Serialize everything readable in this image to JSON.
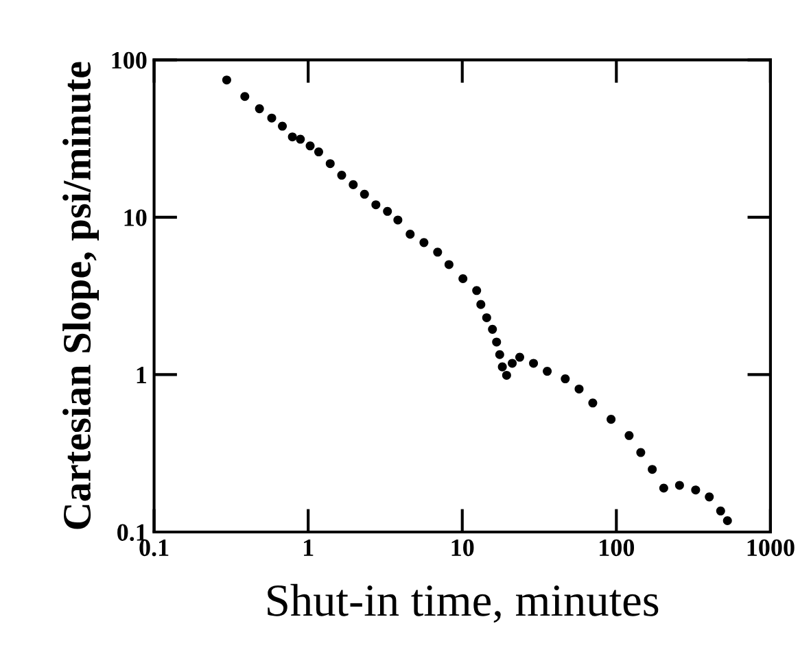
{
  "chart_data": {
    "type": "scatter",
    "xlabel": "Shut-in time, minutes",
    "ylabel": "Cartesian Slope, psi/minute",
    "x": [
      0.296,
      0.388,
      0.483,
      0.58,
      0.68,
      0.79,
      0.89,
      1.03,
      1.17,
      1.39,
      1.65,
      1.96,
      2.32,
      2.75,
      3.27,
      3.82,
      4.59,
      5.64,
      6.92,
      8.2,
      10.1,
      12.4,
      13.2,
      14.4,
      15.7,
      16.7,
      17.5,
      18.2,
      19.4,
      21.1,
      23.6,
      29.0,
      35.6,
      46.6,
      57.3,
      70.3,
      92.4,
      121,
      144,
      171,
      203,
      257,
      327,
      401,
      475,
      526
    ],
    "values": [
      74.5,
      58.5,
      48.9,
      42.7,
      37.9,
      32.4,
      31.3,
      28.4,
      26,
      21.9,
      18.5,
      16.1,
      14.0,
      12.0,
      10.9,
      9.6,
      7.8,
      6.9,
      6.0,
      5.0,
      4.07,
      3.42,
      2.79,
      2.3,
      1.94,
      1.61,
      1.34,
      1.12,
      0.99,
      1.18,
      1.29,
      1.18,
      1.05,
      0.94,
      0.81,
      0.66,
      0.52,
      0.41,
      0.32,
      0.25,
      0.19,
      0.198,
      0.185,
      0.167,
      0.136,
      0.118
    ],
    "color": "#000000",
    "marker": "circle",
    "log": "xy",
    "grid": false,
    "legend": false,
    "xlim": [
      0.1,
      1000
    ],
    "ylim": [
      0.1,
      100
    ],
    "xticks": [
      0.1,
      1,
      10,
      100,
      1000
    ],
    "yticks": [
      0.1,
      1,
      10,
      100
    ]
  }
}
